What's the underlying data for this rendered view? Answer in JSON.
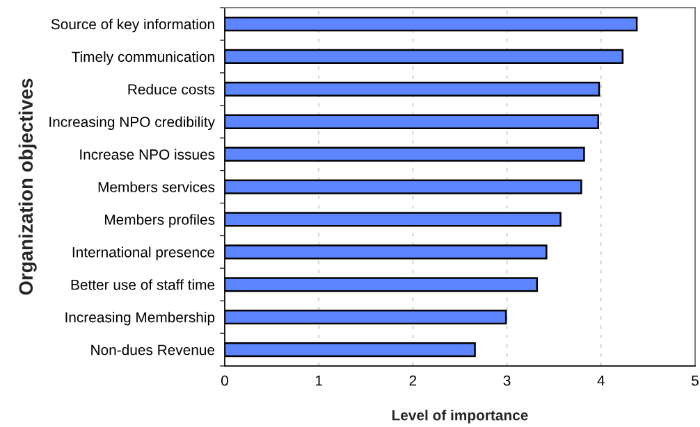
{
  "chart_data": {
    "type": "bar",
    "orientation": "horizontal",
    "categories": [
      "Source of key information",
      "Timely communication",
      "Reduce costs",
      "Increasing NPO credibility",
      "Increase NPO issues",
      "Members services",
      "Members profiles",
      "International presence",
      "Better use of staff time",
      "Increasing Membership",
      "Non-dues Revenue"
    ],
    "values": [
      4.38,
      4.23,
      3.98,
      3.97,
      3.82,
      3.79,
      3.57,
      3.42,
      3.32,
      2.99,
      2.66
    ],
    "color": "#5c85ff",
    "xlim": [
      0,
      5
    ],
    "xticks": [
      0,
      1,
      2,
      3,
      4,
      5
    ],
    "xlabel": "Level of importance",
    "ylabel": "Organization objectives",
    "grid": "x"
  }
}
